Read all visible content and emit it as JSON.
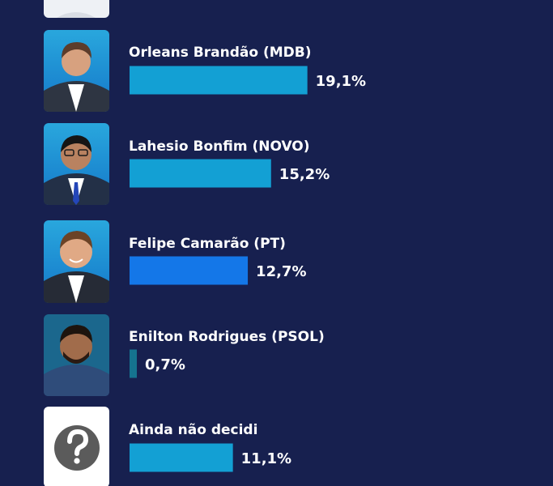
{
  "chart_data": {
    "type": "bar",
    "orientation": "horizontal",
    "categories": [
      "",
      "Orleans Brandão (MDB)",
      "Lahesio Bonfim (NOVO)",
      "Felipe Camarão (PT)",
      "Enilton Rodrigues (PSOL)",
      "Ainda não decidi"
    ],
    "values": [
      null,
      19.1,
      15.2,
      12.7,
      0.7,
      11.1
    ],
    "value_labels": [
      "",
      "19,1%",
      "15,2%",
      "12,7%",
      "0,7%",
      "11,1%"
    ],
    "unit": "%",
    "grid": false,
    "legend": "none",
    "title": "",
    "xlabel": "",
    "ylabel": ""
  },
  "colors": {
    "background": "#17204f",
    "bar_default": "#13a0d4",
    "bar_pt": "#1477e8",
    "bar_psol": "#15738f",
    "top_bar": "#1a7fe0",
    "text": "#ffffff"
  },
  "icons": {
    "candidate_photo": "person-portrait-icon",
    "undecided": "question-mark-icon"
  }
}
